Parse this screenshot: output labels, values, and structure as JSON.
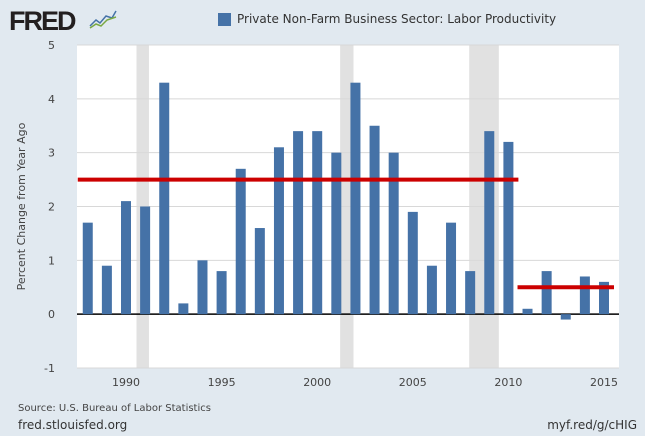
{
  "header": {
    "logo": "FRED"
  },
  "footer": {
    "source": "Source: U.S. Bureau of Labor Statistics",
    "site": "fred.stlouisfed.org",
    "short_url": "myf.red/g/cHIG"
  },
  "colors": {
    "bar": "#4572a7",
    "reference_line": "#cc0000",
    "recession": "#e1e1e1",
    "background": "#e1e9f0"
  },
  "chart_data": {
    "type": "bar",
    "title": "",
    "ylabel": "Percent Change from Year Ago",
    "xlabel": "",
    "ylim": [
      -1,
      5
    ],
    "yticks": [
      -1,
      0,
      1,
      2,
      3,
      4,
      5
    ],
    "xticks": [
      1990,
      1995,
      2000,
      2005,
      2010,
      2015
    ],
    "grid": "horizontal",
    "legend": "top-center",
    "series": [
      {
        "name": "Private Non-Farm Business Sector: Labor Productivity",
        "x": [
          1988,
          1989,
          1990,
          1991,
          1992,
          1993,
          1994,
          1995,
          1996,
          1997,
          1998,
          1999,
          2000,
          2001,
          2002,
          2003,
          2004,
          2005,
          2006,
          2007,
          2008,
          2009,
          2010,
          2011,
          2012,
          2013,
          2014,
          2015
        ],
        "values": [
          1.7,
          0.9,
          2.1,
          2.0,
          4.3,
          0.2,
          1.0,
          0.8,
          2.7,
          1.6,
          3.1,
          3.4,
          3.4,
          3.0,
          4.3,
          3.5,
          3.0,
          1.9,
          0.9,
          1.7,
          0.8,
          3.4,
          3.2,
          0.1,
          0.8,
          -0.1,
          0.7,
          0.6
        ]
      }
    ],
    "reference_lines": [
      {
        "value": 2.5,
        "from": 1988,
        "to": 2010
      },
      {
        "value": 0.5,
        "from": 2011,
        "to": 2015
      }
    ],
    "recessions": [
      [
        1990.55,
        1991.2
      ],
      [
        2001.2,
        2001.9
      ],
      [
        2007.95,
        2009.5
      ]
    ]
  }
}
